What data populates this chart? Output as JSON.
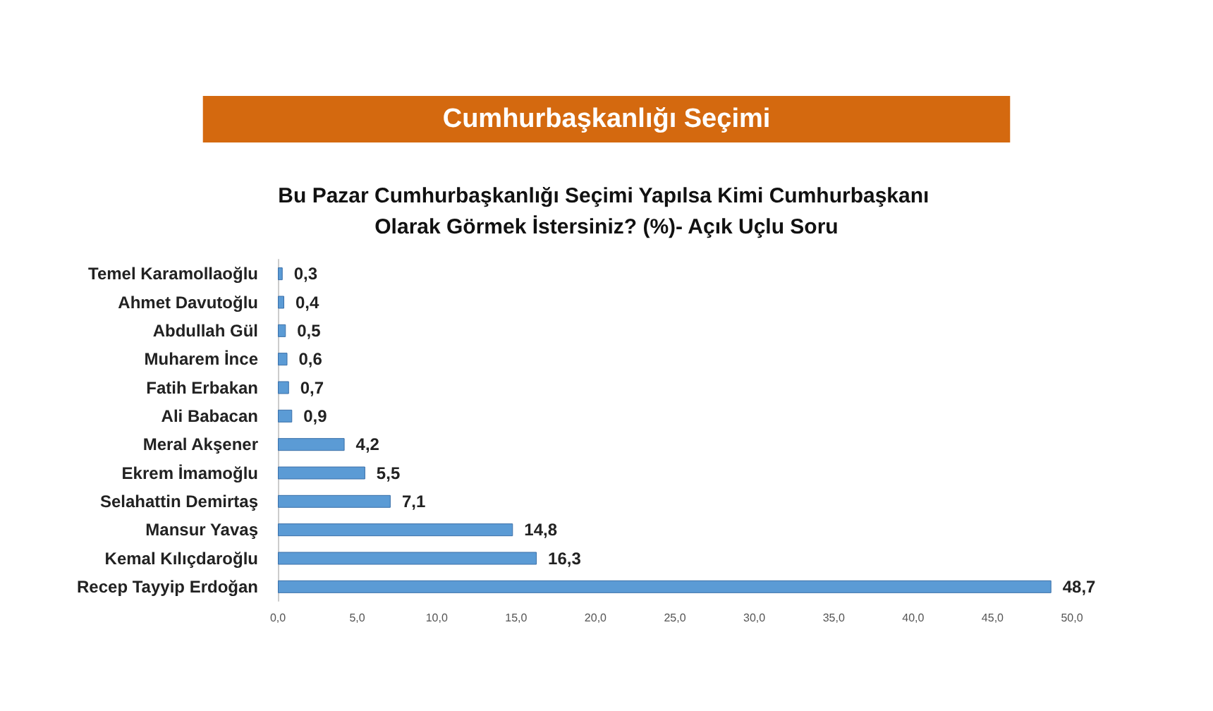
{
  "chart_data": {
    "type": "bar",
    "orientation": "horizontal",
    "title": "Cumhurbaşkanlığı Seçimi",
    "subtitle": "Bu Pazar Cumhurbaşkanlığı Seçimi Yapılsa Kimi Cumhurbaşkanı Olarak Görmek İstersiniz? (%)- Açık Uçlu Soru",
    "categories": [
      "Temel Karamollaoğlu",
      "Ahmet Davutoğlu",
      "Abdullah Gül",
      "Muharem İnce",
      "Fatih Erbakan",
      "Ali Babacan",
      "Meral Akşener",
      "Ekrem İmamoğlu",
      "Selahattin Demirtaş",
      "Mansur Yavaş",
      "Kemal Kılıçdaroğlu",
      "Recep Tayyip Erdoğan"
    ],
    "values": [
      0.3,
      0.4,
      0.5,
      0.6,
      0.7,
      0.9,
      4.2,
      5.5,
      7.1,
      14.8,
      16.3,
      48.7
    ],
    "value_labels": [
      "0,3",
      "0,4",
      "0,5",
      "0,6",
      "0,7",
      "0,9",
      "4,2",
      "5,5",
      "7,1",
      "14,8",
      "16,3",
      "48,7"
    ],
    "color": "#5b9bd5",
    "xlim": [
      0,
      50
    ],
    "xticks": [
      {
        "value": 0,
        "label": "0,0"
      },
      {
        "value": 5,
        "label": "5,0"
      },
      {
        "value": 10,
        "label": "10,0"
      },
      {
        "value": 15,
        "label": "15,0"
      },
      {
        "value": 20,
        "label": "20,0"
      },
      {
        "value": 25,
        "label": "25,0"
      },
      {
        "value": 30,
        "label": "30,0"
      },
      {
        "value": 35,
        "label": "35,0"
      },
      {
        "value": 40,
        "label": "40,0"
      },
      {
        "value": 45,
        "label": "45,0"
      },
      {
        "value": 50,
        "label": "50,0"
      }
    ],
    "grid": false
  }
}
